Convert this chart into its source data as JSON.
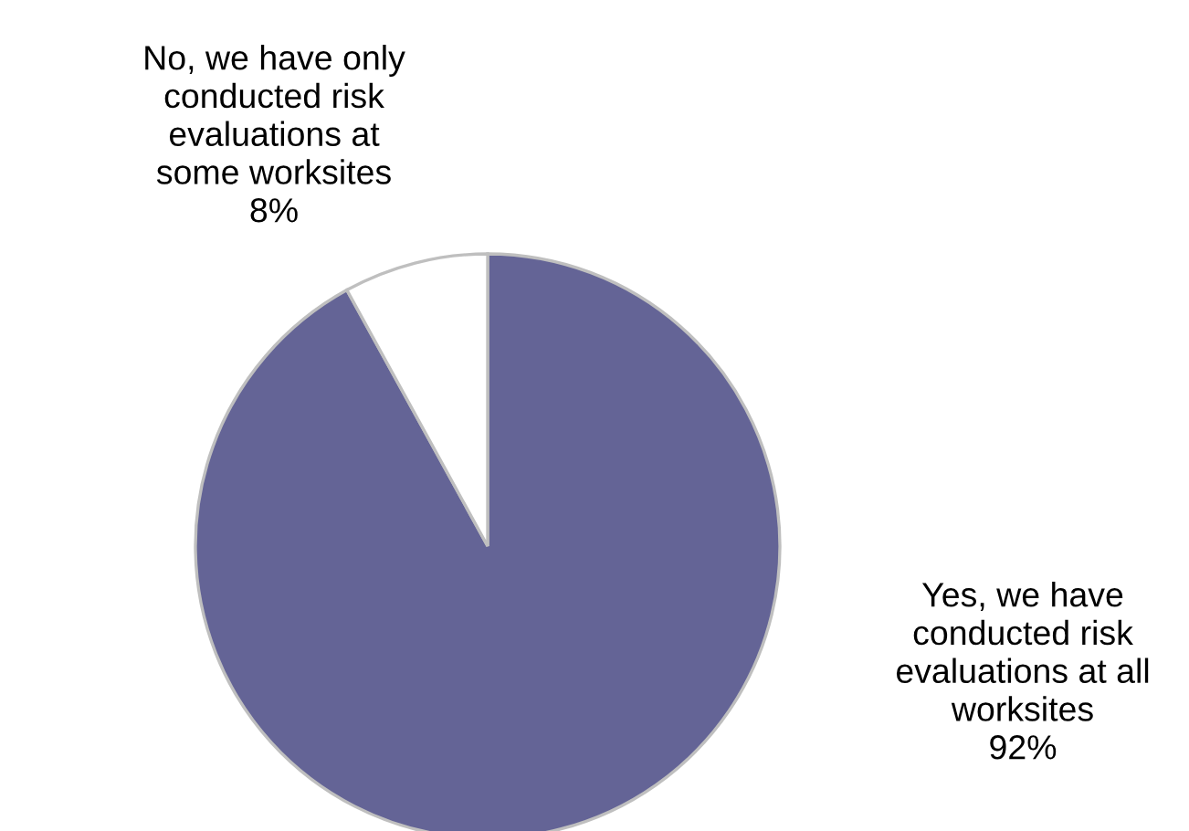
{
  "chart_data": {
    "type": "pie",
    "categories": [
      "Yes, we have\nconducted risk\nevaluations at all\nworksites",
      "No, we have only\nconducted risk\nevaluations at\nsome worksites"
    ],
    "values": [
      92,
      8
    ],
    "value_labels": [
      "92%",
      "8%"
    ],
    "colors": [
      "#646496",
      "#ffffff"
    ],
    "legend": false
  }
}
